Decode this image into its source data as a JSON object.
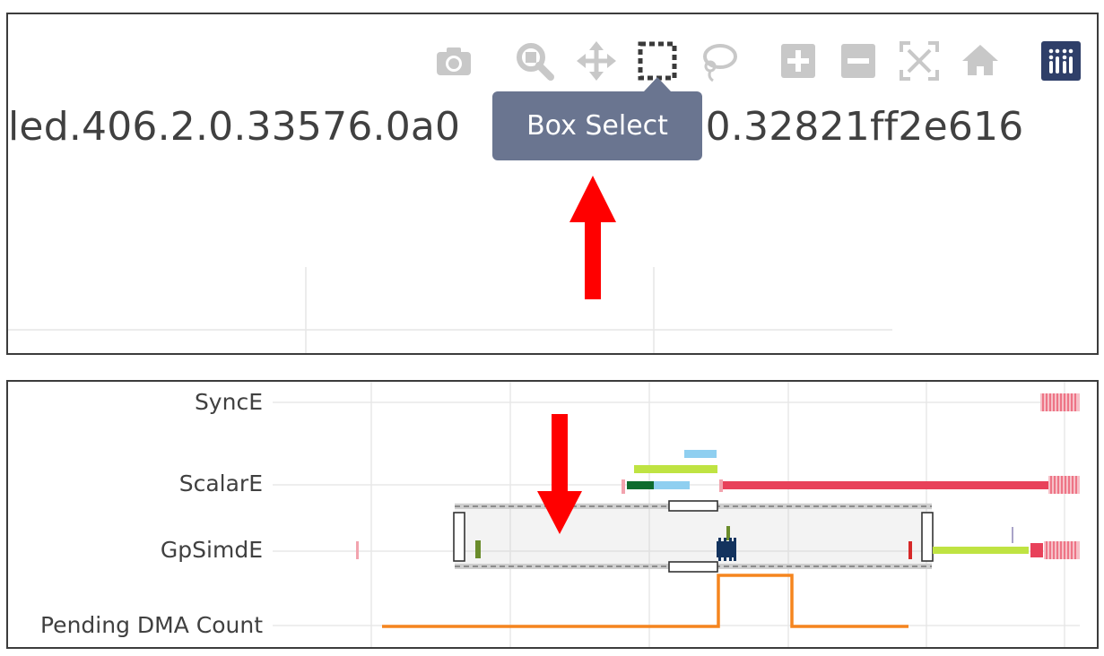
{
  "top_panel": {
    "trace_title": "led.406.2.0.33576.0a0",
    "trace_title_tail": "470.32821ff2e616",
    "tooltip": "Box Select",
    "modebar": [
      {
        "name": "camera-icon",
        "label": "Download plot as png"
      },
      {
        "name": "zoom-icon",
        "label": "Zoom"
      },
      {
        "name": "pan-icon",
        "label": "Pan"
      },
      {
        "name": "box-select-icon",
        "label": "Box Select",
        "active": true
      },
      {
        "name": "lasso-select-icon",
        "label": "Lasso Select"
      },
      {
        "name": "zoom-in-icon",
        "label": "Zoom in"
      },
      {
        "name": "zoom-out-icon",
        "label": "Zoom out"
      },
      {
        "name": "autoscale-icon",
        "label": "Autoscale"
      },
      {
        "name": "home-icon",
        "label": "Reset axes"
      },
      {
        "name": "plotly-logo-icon",
        "label": "Produced with Plotly"
      }
    ]
  },
  "bottom_panel": {
    "lanes": [
      "SyncE",
      "ScalarE",
      "GpSimdE",
      "Pending DMA Count"
    ]
  },
  "colors": {
    "modebar_icon": "#c8c8c8",
    "tooltip_bg": "#6a7590",
    "plotly_logo_bg": "#2f3f69",
    "annotation_arrow": "#ff0000",
    "red_bar": "#e8415a",
    "lime_bar": "#bfe342",
    "light_blue_bar": "#8fcff0",
    "dark_green_bar": "#0e6b2e",
    "olive_bar": "#6a8c2b",
    "navy_bar": "#13335e",
    "orange_line": "#f5851f",
    "pink_stripes": "#f2a3ae"
  }
}
